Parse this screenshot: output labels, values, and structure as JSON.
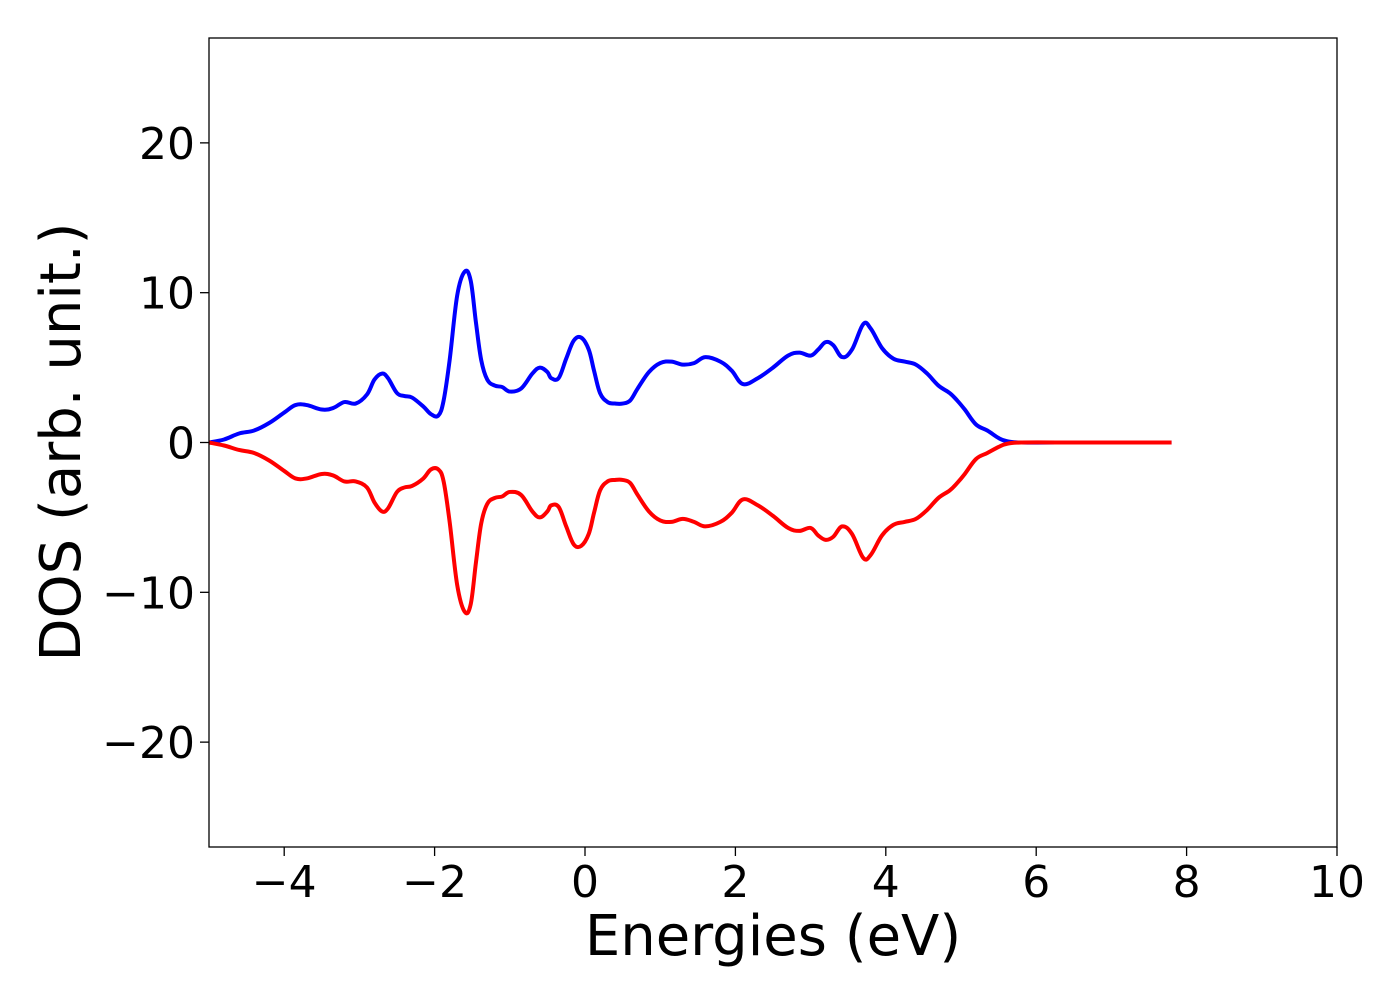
{
  "chart_data": {
    "type": "line",
    "title": "",
    "xlabel": "Energies (eV)",
    "ylabel": "DOS (arb. unit.)",
    "xlim": [
      -5,
      10
    ],
    "ylim": [
      -27,
      27
    ],
    "xticks": [
      -4,
      -2,
      0,
      2,
      4,
      6,
      8,
      10
    ],
    "xtick_labels": [
      "−4",
      "−2",
      "0",
      "2",
      "4",
      "6",
      "8",
      "10"
    ],
    "yticks": [
      -20,
      -10,
      0,
      10,
      20
    ],
    "ytick_labels": [
      "−20",
      "−10",
      "0",
      "10",
      "20"
    ],
    "grid": false,
    "legend": "none",
    "series": [
      {
        "color": "#0000ff",
        "x": [
          -5.0,
          -4.8,
          -4.6,
          -4.4,
          -4.2,
          -4.0,
          -3.85,
          -3.7,
          -3.5,
          -3.35,
          -3.2,
          -3.05,
          -2.9,
          -2.8,
          -2.7,
          -2.62,
          -2.5,
          -2.4,
          -2.3,
          -2.15,
          -2.05,
          -1.95,
          -1.88,
          -1.8,
          -1.7,
          -1.6,
          -1.52,
          -1.45,
          -1.38,
          -1.3,
          -1.2,
          -1.1,
          -1.0,
          -0.85,
          -0.7,
          -0.6,
          -0.5,
          -0.45,
          -0.35,
          -0.25,
          -0.15,
          -0.05,
          0.05,
          0.12,
          0.2,
          0.3,
          0.4,
          0.5,
          0.6,
          0.7,
          0.85,
          1.0,
          1.15,
          1.3,
          1.45,
          1.6,
          1.8,
          1.95,
          2.1,
          2.3,
          2.5,
          2.7,
          2.85,
          3.0,
          3.1,
          3.2,
          3.3,
          3.42,
          3.55,
          3.7,
          3.8,
          3.95,
          4.1,
          4.25,
          4.4,
          4.55,
          4.7,
          4.85,
          4.95,
          5.05,
          5.2,
          5.35,
          5.5,
          5.6,
          5.8,
          6.5,
          7.0,
          7.5,
          7.8
        ],
        "y": [
          0.0,
          0.2,
          0.6,
          0.8,
          1.3,
          2.0,
          2.5,
          2.5,
          2.2,
          2.3,
          2.7,
          2.6,
          3.2,
          4.2,
          4.6,
          4.3,
          3.3,
          3.1,
          3.0,
          2.4,
          1.9,
          1.8,
          2.8,
          5.5,
          9.8,
          11.4,
          10.8,
          8.0,
          5.5,
          4.2,
          3.8,
          3.7,
          3.4,
          3.6,
          4.6,
          5.0,
          4.7,
          4.3,
          4.3,
          5.6,
          6.8,
          7.0,
          6.2,
          4.8,
          3.3,
          2.7,
          2.6,
          2.6,
          2.8,
          3.6,
          4.7,
          5.3,
          5.4,
          5.2,
          5.3,
          5.7,
          5.4,
          4.8,
          3.9,
          4.3,
          5.0,
          5.8,
          6.0,
          5.8,
          6.2,
          6.7,
          6.5,
          5.7,
          6.2,
          7.9,
          7.6,
          6.3,
          5.6,
          5.4,
          5.2,
          4.6,
          3.8,
          3.3,
          2.8,
          2.2,
          1.2,
          0.8,
          0.3,
          0.1,
          0.0,
          0.0,
          0.0,
          0.0,
          0.0
        ]
      },
      {
        "color": "#ff0000",
        "x": [
          -5.0,
          -4.8,
          -4.6,
          -4.4,
          -4.2,
          -4.0,
          -3.85,
          -3.7,
          -3.5,
          -3.35,
          -3.2,
          -3.05,
          -2.9,
          -2.8,
          -2.7,
          -2.62,
          -2.5,
          -2.4,
          -2.3,
          -2.15,
          -2.05,
          -1.95,
          -1.88,
          -1.8,
          -1.7,
          -1.6,
          -1.52,
          -1.45,
          -1.38,
          -1.3,
          -1.2,
          -1.1,
          -1.0,
          -0.85,
          -0.7,
          -0.6,
          -0.5,
          -0.45,
          -0.35,
          -0.25,
          -0.15,
          -0.05,
          0.05,
          0.12,
          0.2,
          0.3,
          0.4,
          0.5,
          0.6,
          0.7,
          0.85,
          1.0,
          1.15,
          1.3,
          1.45,
          1.6,
          1.8,
          1.95,
          2.1,
          2.3,
          2.5,
          2.7,
          2.85,
          3.0,
          3.1,
          3.2,
          3.3,
          3.42,
          3.55,
          3.7,
          3.8,
          3.95,
          4.1,
          4.25,
          4.4,
          4.55,
          4.7,
          4.85,
          4.95,
          5.05,
          5.2,
          5.35,
          5.5,
          5.6,
          5.8,
          6.5,
          7.0,
          7.5,
          7.8
        ],
        "y": [
          0.0,
          -0.2,
          -0.5,
          -0.7,
          -1.2,
          -1.9,
          -2.4,
          -2.4,
          -2.1,
          -2.2,
          -2.6,
          -2.6,
          -3.0,
          -4.0,
          -4.6,
          -4.4,
          -3.3,
          -3.0,
          -2.9,
          -2.4,
          -1.8,
          -1.8,
          -2.6,
          -5.3,
          -9.5,
          -11.3,
          -10.8,
          -8.0,
          -5.4,
          -4.1,
          -3.7,
          -3.6,
          -3.3,
          -3.5,
          -4.6,
          -5.0,
          -4.6,
          -4.2,
          -4.3,
          -5.6,
          -6.8,
          -6.9,
          -6.1,
          -4.7,
          -3.2,
          -2.6,
          -2.5,
          -2.5,
          -2.7,
          -3.5,
          -4.6,
          -5.2,
          -5.3,
          -5.1,
          -5.3,
          -5.6,
          -5.3,
          -4.7,
          -3.8,
          -4.2,
          -4.9,
          -5.7,
          -5.9,
          -5.7,
          -6.2,
          -6.5,
          -6.3,
          -5.6,
          -6.1,
          -7.7,
          -7.5,
          -6.2,
          -5.5,
          -5.3,
          -5.1,
          -4.5,
          -3.7,
          -3.2,
          -2.7,
          -2.1,
          -1.1,
          -0.7,
          -0.3,
          -0.1,
          0.0,
          0.0,
          0.0,
          0.0,
          0.0
        ]
      }
    ]
  }
}
